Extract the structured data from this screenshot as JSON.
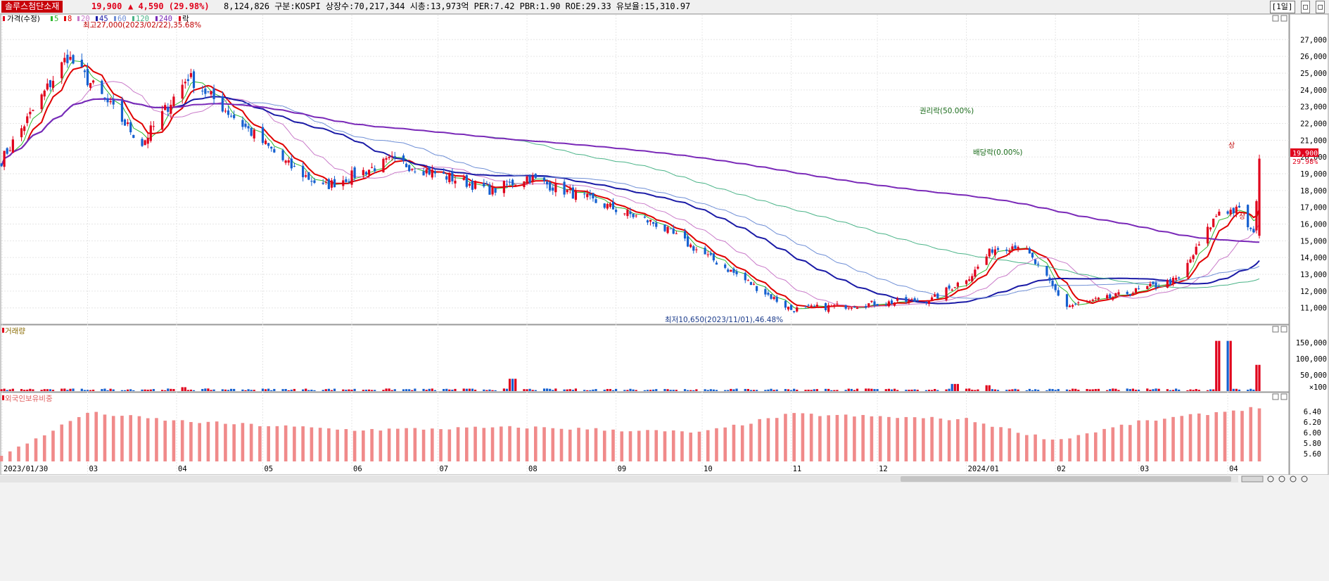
{
  "header": {
    "stock_name": "솔루스첨단소재",
    "price": "19,900",
    "change": "▲ 4,590 (29.98%)",
    "info": "8,124,826  구분:KOSPI 상장수:70,217,344 시총:13,973억 PER:7.42 PBR:1.90 ROE:29.33 유보율:15,310.97",
    "period_label": "[1일]",
    "window_buttons": [
      "□",
      "□"
    ]
  },
  "legend": {
    "price_label": "가격(수정)",
    "ma": [
      {
        "label": "5",
        "color": "#2eb82e"
      },
      {
        "label": "8",
        "color": "#e00000"
      },
      {
        "label": "20",
        "color": "#c97ac9"
      },
      {
        "label": "45",
        "color": "#1a1aa6"
      },
      {
        "label": "60",
        "color": "#6f8fd6"
      },
      {
        "label": "120",
        "color": "#49b387"
      },
      {
        "label": "240",
        "color": "#7a29b8"
      }
    ],
    "lock_label": "락",
    "volume_label": "거래량",
    "foreign_label": "외국인보유비중"
  },
  "colors": {
    "up": "#e0001b",
    "down": "#1560d0",
    "foreign_bar": "#f08a8a",
    "annotation": "#1a6b1a",
    "max_annotation": "#c00000",
    "min_annotation": "#1a3a8a"
  },
  "annotations": {
    "high": "최고27,000(2023/02/22),35.68%",
    "low": "최저10,650(2023/11/01),46.48%",
    "rights": "권리락(50.00%)",
    "dividend": "배당락(0.00%)",
    "limit_up": "상",
    "limit_up_2": "상",
    "last_price": "19,900",
    "last_pct": "29.98%"
  },
  "chart_data": [
    {
      "type": "candlestick",
      "title": "",
      "y_ticks": [
        "11,000",
        "12,000",
        "13,000",
        "14,000",
        "15,000",
        "16,000",
        "17,000",
        "18,000",
        "19,000",
        "20,000",
        "21,000",
        "22,000",
        "23,000",
        "24,000",
        "25,000",
        "26,000",
        "27,000"
      ],
      "ylim": [
        10400,
        27600
      ],
      "x_ticks": [
        "2023/01/30",
        "03",
        "04",
        "05",
        "06",
        "07",
        "08",
        "09",
        "10",
        "11",
        "12",
        "2024/01",
        "02",
        "03",
        "04"
      ],
      "key_points": [
        {
          "date": "2023/01/30",
          "close": 19800
        },
        {
          "date": "2023/02/22",
          "close": 26000,
          "high": 27000
        },
        {
          "date": "2023/03/20",
          "close": 20800
        },
        {
          "date": "2023/04/05",
          "close": 24800
        },
        {
          "date": "2023/05/10",
          "close": 19500
        },
        {
          "date": "2023/05/22",
          "close": 18200
        },
        {
          "date": "2023/06/15",
          "close": 19800
        },
        {
          "date": "2023/07/20",
          "close": 18000
        },
        {
          "date": "2023/08/01",
          "close": 18800
        },
        {
          "date": "2023/09/15",
          "close": 16000
        },
        {
          "date": "2023/10/10",
          "close": 13300
        },
        {
          "date": "2023/11/01",
          "close": 10900,
          "low": 10650
        },
        {
          "date": "2023/12/20",
          "close": 11500
        },
        {
          "date": "2024/01/03",
          "close": 13000
        },
        {
          "date": "2024/01/10",
          "close": 14500
        },
        {
          "date": "2024/01/20",
          "close": 14800
        },
        {
          "date": "2024/02/05",
          "close": 11100
        },
        {
          "date": "2024/02/20",
          "close": 11600
        },
        {
          "date": "2024/03/15",
          "close": 12700
        },
        {
          "date": "2024/03/29",
          "close": 16800
        },
        {
          "date": "2024/04/05",
          "close": 16800
        },
        {
          "date": "2024/04/10",
          "close": 15300
        },
        {
          "date": "2024/04/12",
          "close": 19900
        }
      ],
      "moving_averages": [
        "5",
        "8",
        "20",
        "45",
        "60",
        "120",
        "240"
      ],
      "last_price": 19900
    },
    {
      "type": "bar",
      "title": "거래량",
      "y_ticks": [
        "×100",
        "50,000",
        "100,000",
        "150,000"
      ],
      "ylim": [
        0,
        165000
      ],
      "spikes": [
        {
          "date": "2023/04/03",
          "value": 12000
        },
        {
          "date": "2023/07/27",
          "value": 38000
        },
        {
          "date": "2023/12/28",
          "value": 22000
        },
        {
          "date": "2024/01/08",
          "value": 18000
        },
        {
          "date": "2024/03/29",
          "value": 155000
        },
        {
          "date": "2024/04/01",
          "value": 155000
        },
        {
          "date": "2024/04/12",
          "value": 81000
        }
      ]
    },
    {
      "type": "bar",
      "title": "외국인보유비중",
      "y_ticks": [
        "5.60",
        "5.80",
        "6.00",
        "6.20",
        "6.40"
      ],
      "ylim": [
        5.45,
        6.52
      ],
      "values_by_month": [
        {
          "date": "2023/01/30",
          "value": 5.55
        },
        {
          "date": "2023/03/01",
          "value": 6.38
        },
        {
          "date": "2023/04/01",
          "value": 6.22
        },
        {
          "date": "2023/06/01",
          "value": 6.05
        },
        {
          "date": "2023/08/01",
          "value": 6.1
        },
        {
          "date": "2023/10/01",
          "value": 6.0
        },
        {
          "date": "2023/11/01",
          "value": 6.35
        },
        {
          "date": "2024/01/01",
          "value": 6.25
        },
        {
          "date": "2024/02/01",
          "value": 5.85
        },
        {
          "date": "2024/03/01",
          "value": 6.2
        },
        {
          "date": "2024/04/12",
          "value": 6.48
        }
      ]
    }
  ]
}
